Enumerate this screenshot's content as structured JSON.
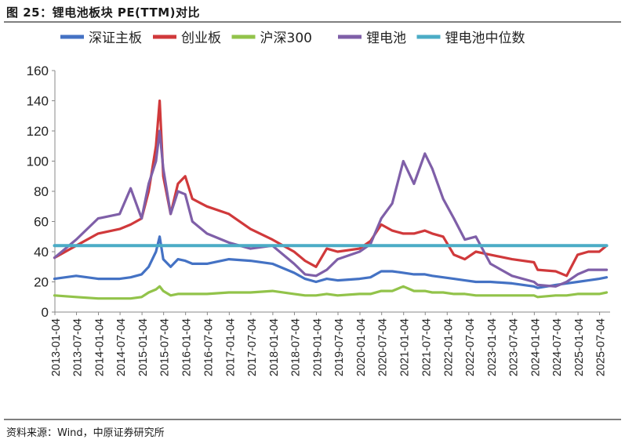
{
  "figure": {
    "title": "图 25：锂电池板块 PE(TTM)对比",
    "source": "资料来源：Wind，中原证券研究所"
  },
  "colors": {
    "深证主板": "#4472C4",
    "创业板": "#D0393B",
    "沪深300": "#92C34A",
    "锂电池": "#7F5FA8",
    "锂电池中位数": "#4BACC6"
  },
  "chart_data": {
    "type": "line",
    "title": "",
    "xlabel": "",
    "ylabel": "",
    "ylim": [
      0,
      160
    ],
    "yticks": [
      0,
      20,
      40,
      60,
      80,
      100,
      120,
      140,
      160
    ],
    "xlim": [
      "2013-01-04",
      "2025-09-30"
    ],
    "xticks": [
      "2013-01-04",
      "2013-07-04",
      "2014-01-04",
      "2014-07-04",
      "2015-01-04",
      "2015-07-04",
      "2016-01-04",
      "2016-07-04",
      "2017-01-04",
      "2017-07-04",
      "2018-01-04",
      "2018-07-04",
      "2019-01-04",
      "2019-07-04",
      "2020-01-04",
      "2020-07-04",
      "2021-01-04",
      "2021-07-04",
      "2022-01-04",
      "2022-07-04",
      "2023-01-04",
      "2023-07-04",
      "2024-01-04",
      "2024-07-04",
      "2025-01-04",
      "2025-07-04"
    ],
    "grid": false,
    "legend_position": "top",
    "x": [
      "2013-01",
      "2013-07",
      "2014-01",
      "2014-07",
      "2014-10",
      "2015-01",
      "2015-03",
      "2015-05",
      "2015-06",
      "2015-07",
      "2015-09",
      "2015-11",
      "2016-01",
      "2016-03",
      "2016-07",
      "2017-01",
      "2017-07",
      "2018-01",
      "2018-07",
      "2018-10",
      "2019-01",
      "2019-04",
      "2019-07",
      "2020-01",
      "2020-04",
      "2020-07",
      "2020-10",
      "2021-01",
      "2021-04",
      "2021-07",
      "2021-09",
      "2021-12",
      "2022-03",
      "2022-06",
      "2022-09",
      "2023-01",
      "2023-07",
      "2024-01",
      "2024-02",
      "2024-07",
      "2024-10",
      "2025-01",
      "2025-04",
      "2025-07",
      "2025-09"
    ],
    "series": [
      {
        "name": "深证主板",
        "values": [
          22,
          24,
          22,
          22,
          23,
          25,
          30,
          40,
          50,
          35,
          30,
          35,
          34,
          32,
          32,
          35,
          34,
          32,
          26,
          22,
          20,
          22,
          21,
          22,
          23,
          27,
          27,
          26,
          25,
          25,
          24,
          23,
          22,
          21,
          20,
          20,
          19,
          17,
          16,
          18,
          19,
          20,
          21,
          22,
          23
        ]
      },
      {
        "name": "创业板",
        "values": [
          36,
          44,
          52,
          55,
          58,
          62,
          80,
          110,
          140,
          90,
          65,
          85,
          90,
          75,
          70,
          65,
          55,
          48,
          40,
          34,
          30,
          42,
          40,
          42,
          47,
          58,
          54,
          52,
          52,
          54,
          52,
          50,
          38,
          35,
          40,
          38,
          35,
          33,
          28,
          27,
          24,
          38,
          40,
          40,
          44
        ]
      },
      {
        "name": "沪深300",
        "values": [
          11,
          10,
          9,
          9,
          9,
          10,
          13,
          15,
          17,
          14,
          11,
          12,
          12,
          12,
          12,
          13,
          13,
          14,
          12,
          11,
          11,
          12,
          11,
          12,
          12,
          14,
          14,
          17,
          14,
          14,
          13,
          13,
          12,
          12,
          11,
          11,
          11,
          11,
          10,
          11,
          11,
          12,
          12,
          12,
          13
        ]
      },
      {
        "name": "锂电池",
        "values": [
          36,
          48,
          62,
          65,
          82,
          62,
          85,
          100,
          120,
          95,
          65,
          80,
          78,
          60,
          52,
          46,
          42,
          44,
          32,
          25,
          24,
          28,
          35,
          40,
          45,
          62,
          72,
          100,
          85,
          105,
          95,
          75,
          62,
          48,
          50,
          32,
          24,
          20,
          18,
          17,
          20,
          25,
          28,
          28,
          28
        ]
      },
      {
        "name": "锂电池中位数",
        "values": [
          44,
          44,
          44,
          44,
          44,
          44,
          44,
          44,
          44,
          44,
          44,
          44,
          44,
          44,
          44,
          44,
          44,
          44,
          44,
          44,
          44,
          44,
          44,
          44,
          44,
          44,
          44,
          44,
          44,
          44,
          44,
          44,
          44,
          44,
          44,
          44,
          44,
          44,
          44,
          44,
          44,
          44,
          44,
          44,
          44
        ]
      }
    ]
  }
}
